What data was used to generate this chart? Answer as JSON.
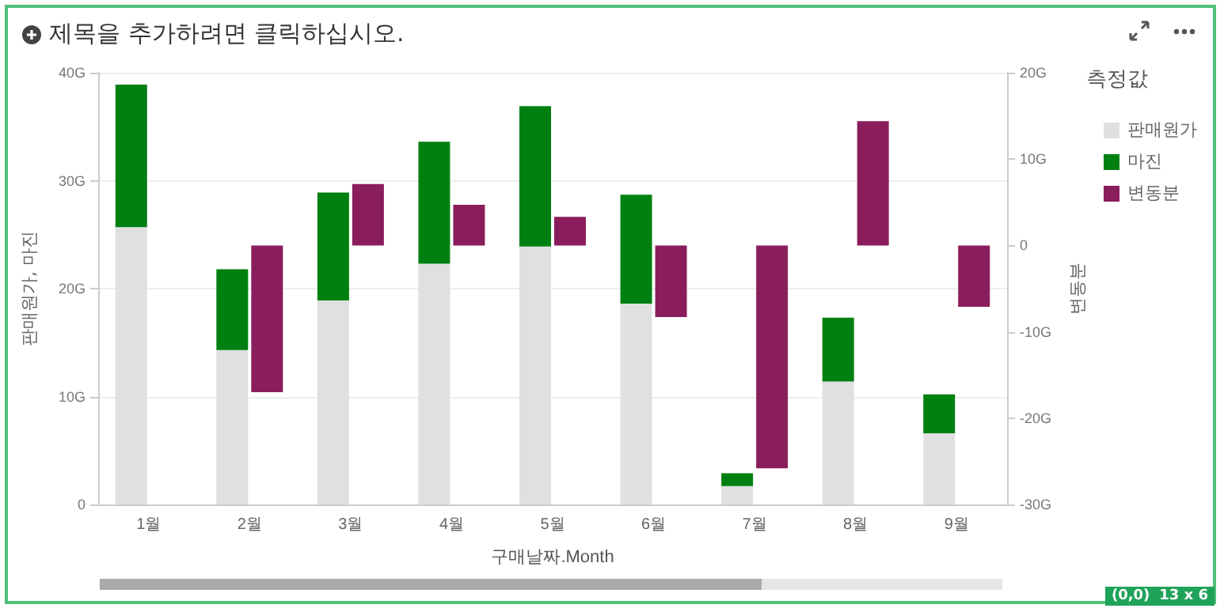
{
  "chart_data": {
    "type": "bar",
    "title": "제목을 추가하려면 클릭하십시오.",
    "xlabel": "구매날짜.Month",
    "ylabel": "판매원가, 마진",
    "y2label": "변동분",
    "legend_title": "측정값",
    "categories": [
      "1월",
      "2월",
      "3월",
      "4월",
      "5월",
      "6월",
      "7월",
      "8월",
      "9월"
    ],
    "series": [
      {
        "name": "판매원가",
        "color": "#e0e0e0",
        "values": [
          25.7,
          14.3,
          18.9,
          22.3,
          23.9,
          18.6,
          1.7,
          11.4,
          6.6
        ]
      },
      {
        "name": "마진",
        "color": "#008010",
        "values": [
          13.2,
          7.5,
          10.0,
          11.3,
          13.0,
          10.1,
          1.2,
          5.9,
          3.6
        ]
      },
      {
        "name": "변동분",
        "color": "#8a1e5c",
        "axis": "y2",
        "values": [
          null,
          -17.0,
          7.1,
          4.7,
          3.3,
          -8.3,
          -25.8,
          14.4,
          -7.1
        ]
      }
    ],
    "stacked": true,
    "ylim": [
      0,
      40
    ],
    "yticks": [
      0,
      {
        "value": 10,
        "label": "10G"
      },
      {
        "value": 20,
        "label": "20G"
      },
      {
        "value": 30,
        "label": "30G"
      },
      {
        "value": 40,
        "label": "40G"
      }
    ],
    "y2lim": [
      -30,
      20
    ],
    "y2ticks": [
      {
        "value": -30,
        "label": "-30G"
      },
      {
        "value": -20,
        "label": "-20G"
      },
      {
        "value": -10,
        "label": "-10G"
      },
      0,
      {
        "value": 10,
        "label": "10G"
      },
      {
        "value": 20,
        "label": "20G"
      }
    ],
    "grid": "y",
    "legend": "right",
    "annotations": [
      "(0,0)",
      "13 x 6"
    ]
  }
}
